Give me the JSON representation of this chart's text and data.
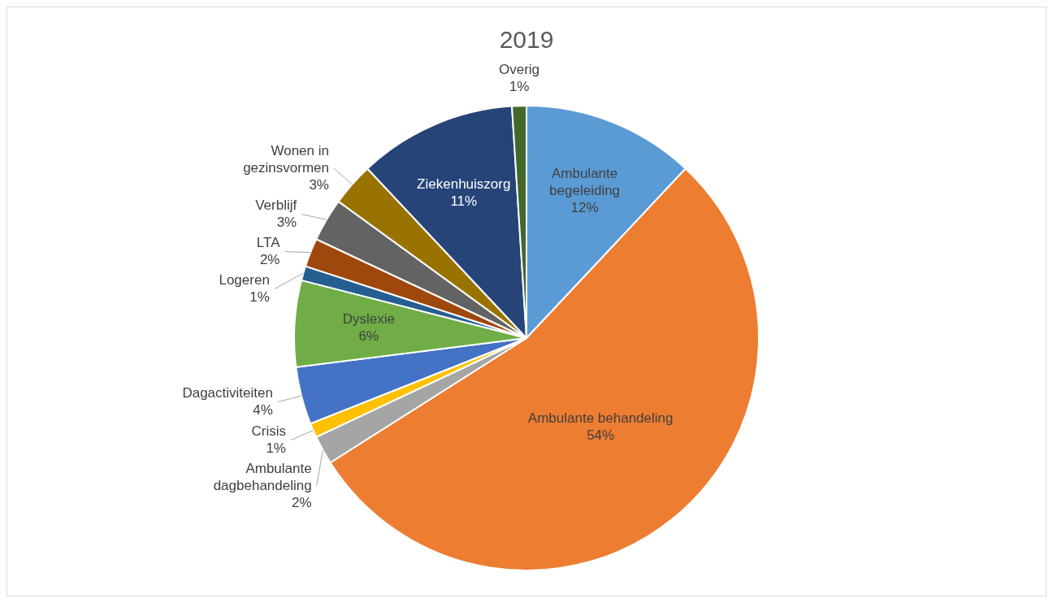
{
  "chart_data": {
    "type": "pie",
    "title": "2019",
    "categories": [
      "Ambulante begeleiding",
      "Ambulante behandeling",
      "Ambulante dagbehandeling",
      "Crisis",
      "Dagactiviteiten",
      "Dyslexie",
      "Logeren",
      "LTA",
      "Verblijf",
      "Wonen in gezinsvormen",
      "Ziekenhuiszorg",
      "Overig"
    ],
    "values": [
      12,
      54,
      2,
      1,
      4,
      6,
      1,
      2,
      3,
      3,
      11,
      1
    ],
    "value_labels": [
      "12%",
      "54%",
      "2%",
      "1%",
      "4%",
      "6%",
      "1%",
      "2%",
      "3%",
      "3%",
      "11%",
      "1%"
    ],
    "colors": [
      "#5b9bd5",
      "#ed7d31",
      "#a5a5a5",
      "#ffc000",
      "#4472c4",
      "#70ad47",
      "#255e91",
      "#9e480e",
      "#636363",
      "#997300",
      "#264478",
      "#43682b"
    ],
    "legend": false
  }
}
